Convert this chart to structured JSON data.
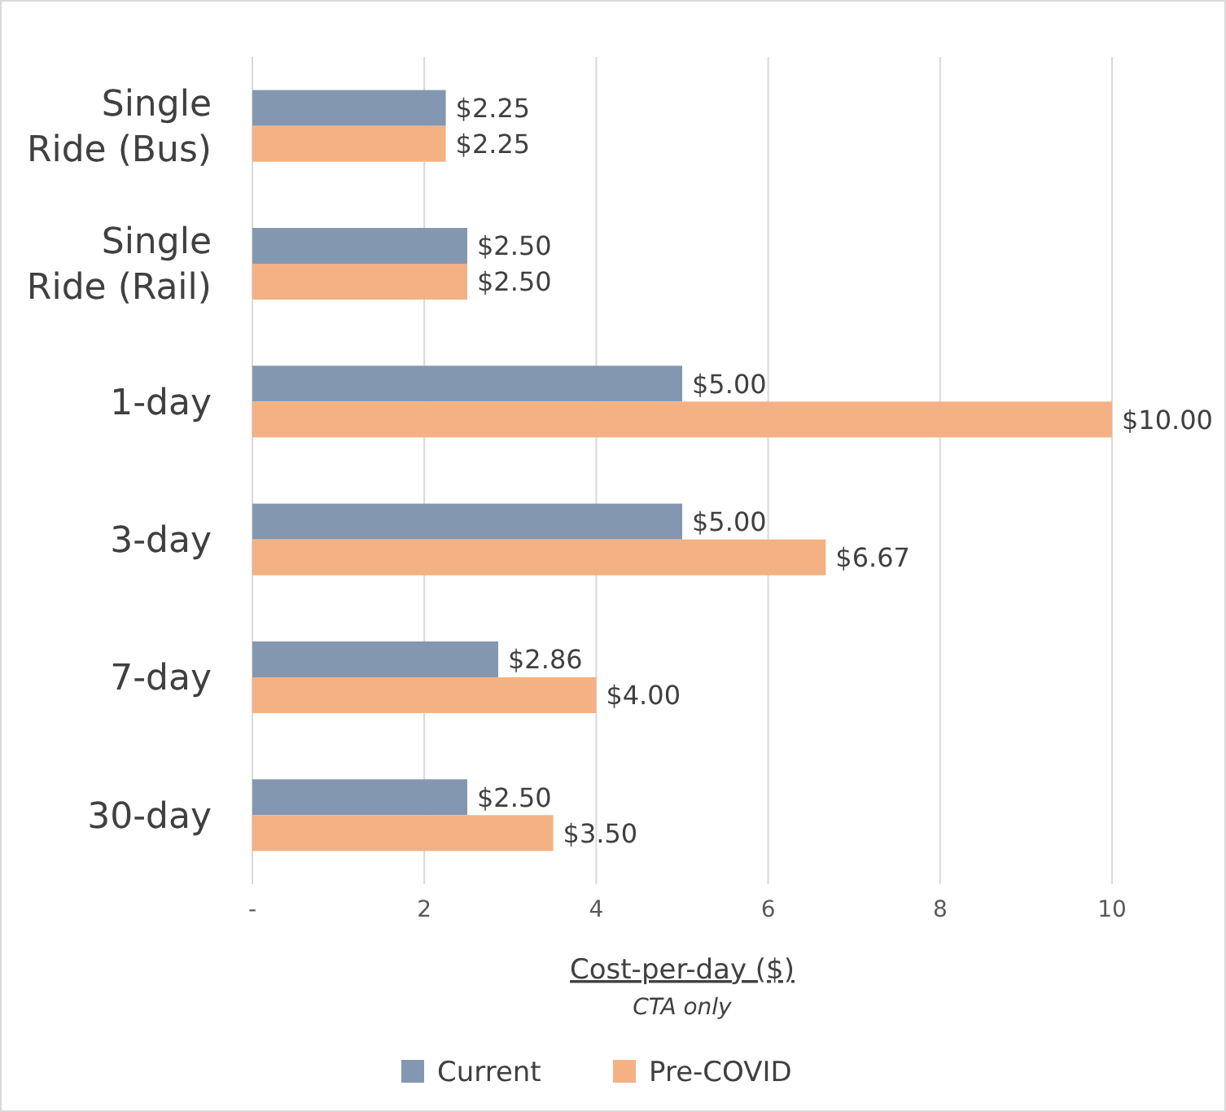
{
  "chart_data": {
    "type": "bar",
    "orientation": "horizontal",
    "categories": [
      "Single\nRide (Bus)",
      "Single\nRide (Rail)",
      "1-day",
      "3-day",
      "7-day",
      "30-day"
    ],
    "series": [
      {
        "name": "Current",
        "color": "#8497b0",
        "values": [
          2.25,
          2.5,
          5,
          5,
          2.86,
          2.5
        ],
        "value_labels": [
          "$2.25",
          "$2.50",
          "$5.00",
          "$5.00",
          "$2.86",
          "$2.50"
        ]
      },
      {
        "name": "Pre-COVID",
        "color": "#f4b183",
        "values": [
          2.25,
          2.5,
          10,
          6.67,
          4,
          3.5
        ],
        "value_labels": [
          "$2.25",
          "$2.50",
          "$10.00",
          "$6.67",
          "$4.00",
          "$3.50"
        ]
      }
    ],
    "xlim": [
      0,
      10
    ],
    "xticks": [
      {
        "value": 0,
        "label": "-"
      },
      2,
      4,
      6,
      8,
      10
    ],
    "grid": "x",
    "legend": "bottom",
    "xlabel": "Cost-per-day ($)",
    "annotations": [
      "CTA only"
    ]
  }
}
